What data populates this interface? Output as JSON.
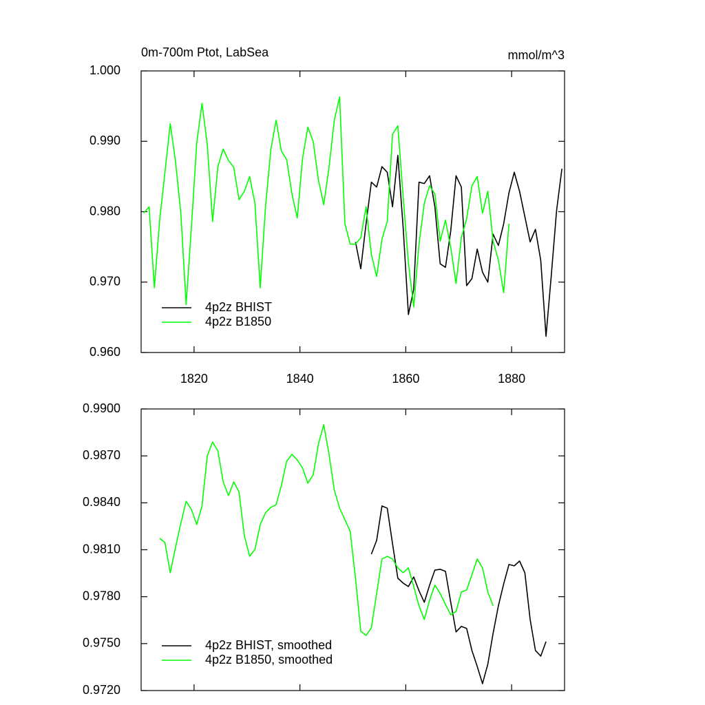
{
  "chart_data": [
    {
      "type": "line",
      "title": "0m-700m Ptot, LabSea",
      "units": "mmol/m^3",
      "xlim": [
        1810,
        1890
      ],
      "xticks": [
        1820,
        1840,
        1860,
        1880
      ],
      "ylim": [
        0.96,
        1.0
      ],
      "yticks": [
        {
          "value": 0.96,
          "label": "0.960"
        },
        {
          "value": 0.97,
          "label": "0.970"
        },
        {
          "value": 0.98,
          "label": "0.980"
        },
        {
          "value": 0.99,
          "label": "0.990"
        },
        {
          "value": 1.0,
          "label": "1.000"
        }
      ],
      "legend": "lower left",
      "series": [
        {
          "name": "4p2z BHIST",
          "color": "#000000",
          "x": [
            1850.5,
            1851.5,
            1852.5,
            1853.5,
            1854.5,
            1855.5,
            1856.5,
            1857.5,
            1858.5,
            1859.5,
            1860.5,
            1861.5,
            1862.5,
            1863.5,
            1864.5,
            1865.5,
            1866.5,
            1867.5,
            1868.5,
            1869.5,
            1870.5,
            1871.5,
            1872.5,
            1873.5,
            1874.5,
            1875.5,
            1876.5,
            1877.5,
            1878.5,
            1879.5,
            1880.5,
            1881.5,
            1882.5,
            1883.5,
            1884.5,
            1885.5,
            1886.5,
            1887.5,
            1888.5,
            1889.5
          ],
          "values": [
            0.9757,
            0.9719,
            0.9783,
            0.9842,
            0.9835,
            0.9864,
            0.9856,
            0.9807,
            0.988,
            0.9778,
            0.9654,
            0.969,
            0.9842,
            0.984,
            0.9851,
            0.9807,
            0.9726,
            0.9721,
            0.9773,
            0.9851,
            0.9835,
            0.9695,
            0.9705,
            0.9747,
            0.9714,
            0.97,
            0.9768,
            0.9752,
            0.9783,
            0.9827,
            0.9856,
            0.9829,
            0.9793,
            0.9757,
            0.9775,
            0.9731,
            0.9623,
            0.971,
            0.9802,
            0.9861
          ]
        },
        {
          "name": "4p2z B1850",
          "color": "#00ff00",
          "x": [
            1810.5,
            1811.5,
            1812.5,
            1813.5,
            1814.5,
            1815.5,
            1816.5,
            1817.5,
            1818.5,
            1819.5,
            1820.5,
            1821.5,
            1822.5,
            1823.5,
            1824.5,
            1825.5,
            1826.5,
            1827.5,
            1828.5,
            1829.5,
            1830.5,
            1831.5,
            1832.5,
            1833.5,
            1834.5,
            1835.5,
            1836.5,
            1837.5,
            1838.5,
            1839.5,
            1840.5,
            1841.5,
            1842.5,
            1843.5,
            1844.5,
            1845.5,
            1846.5,
            1847.5,
            1848.5,
            1849.5,
            1850.5,
            1851.5,
            1852.5,
            1853.5,
            1854.5,
            1855.5,
            1856.5,
            1857.5,
            1858.5,
            1859.5,
            1860.5,
            1861.5,
            1862.5,
            1863.5,
            1864.5,
            1865.5,
            1866.5,
            1867.5,
            1868.5,
            1869.5,
            1870.5,
            1871.5,
            1872.5,
            1873.5,
            1874.5,
            1875.5,
            1876.5,
            1877.5,
            1878.5,
            1879.5
          ],
          "values": [
            0.9798,
            0.9807,
            0.9692,
            0.9788,
            0.9856,
            0.9925,
            0.9871,
            0.9798,
            0.9668,
            0.9778,
            0.9897,
            0.9954,
            0.9895,
            0.9786,
            0.9864,
            0.9889,
            0.9873,
            0.9863,
            0.9817,
            0.9829,
            0.985,
            0.9812,
            0.9692,
            0.9807,
            0.9888,
            0.993,
            0.9886,
            0.9874,
            0.9825,
            0.9791,
            0.9876,
            0.992,
            0.99,
            0.9845,
            0.981,
            0.9863,
            0.993,
            0.9963,
            0.9783,
            0.9754,
            0.9754,
            0.9763,
            0.9807,
            0.9739,
            0.9708,
            0.9761,
            0.9786,
            0.991,
            0.9922,
            0.9822,
            0.9727,
            0.9665,
            0.9754,
            0.9812,
            0.9837,
            0.9825,
            0.9758,
            0.9788,
            0.9749,
            0.9698,
            0.9763,
            0.979,
            0.9837,
            0.985,
            0.9798,
            0.9829,
            0.9758,
            0.9731,
            0.9685,
            0.9783
          ]
        }
      ]
    },
    {
      "type": "line",
      "xlim": [
        1810,
        1890
      ],
      "xticks": [
        1820,
        1840,
        1860,
        1880
      ],
      "ylim": [
        0.972,
        0.99
      ],
      "yticks": [
        {
          "value": 0.972,
          "label": "0.9720"
        },
        {
          "value": 0.975,
          "label": "0.9750"
        },
        {
          "value": 0.978,
          "label": "0.9780"
        },
        {
          "value": 0.981,
          "label": "0.9810"
        },
        {
          "value": 0.984,
          "label": "0.9840"
        },
        {
          "value": 0.987,
          "label": "0.9870"
        },
        {
          "value": 0.99,
          "label": "0.9900"
        }
      ],
      "legend": "lower left",
      "series": [
        {
          "name": "4p2z BHIST, smoothed",
          "color": "#000000",
          "x": [
            1853.5,
            1854.5,
            1855.5,
            1856.5,
            1857.5,
            1858.5,
            1859.5,
            1860.5,
            1861.5,
            1862.5,
            1863.5,
            1864.5,
            1865.5,
            1866.5,
            1867.5,
            1868.5,
            1869.5,
            1870.5,
            1871.5,
            1872.5,
            1873.5,
            1874.5,
            1875.5,
            1876.5,
            1877.5,
            1878.5,
            1879.5,
            1880.5,
            1881.5,
            1882.5,
            1883.5,
            1884.5,
            1885.5,
            1886.5
          ],
          "values": [
            0.98072,
            0.9816,
            0.9838,
            0.98366,
            0.98138,
            0.97918,
            0.97887,
            0.97865,
            0.97926,
            0.97838,
            0.97764,
            0.97874,
            0.9797,
            0.97975,
            0.97962,
            0.97764,
            0.97575,
            0.9761,
            0.97597,
            0.97456,
            0.97354,
            0.97244,
            0.97368,
            0.97566,
            0.97742,
            0.97882,
            0.98006,
            0.97997,
            0.98028,
            0.97953,
            0.97654,
            0.97456,
            0.9742,
            0.97513
          ]
        },
        {
          "name": "4p2z B1850, smoothed",
          "color": "#00ff00",
          "x": [
            1813.5,
            1814.5,
            1815.5,
            1816.5,
            1817.5,
            1818.5,
            1819.5,
            1820.5,
            1821.5,
            1822.5,
            1823.5,
            1824.5,
            1825.5,
            1826.5,
            1827.5,
            1828.5,
            1829.5,
            1830.5,
            1831.5,
            1832.5,
            1833.5,
            1834.5,
            1835.5,
            1836.5,
            1837.5,
            1838.5,
            1839.5,
            1840.5,
            1841.5,
            1842.5,
            1843.5,
            1844.5,
            1845.5,
            1846.5,
            1847.5,
            1848.5,
            1849.5,
            1850.5,
            1851.5,
            1852.5,
            1853.5,
            1854.5,
            1855.5,
            1856.5,
            1857.5,
            1858.5,
            1859.5,
            1860.5,
            1861.5,
            1862.5,
            1863.5,
            1864.5,
            1865.5,
            1866.5,
            1867.5,
            1868.5,
            1869.5,
            1870.5,
            1871.5,
            1872.5,
            1873.5,
            1874.5,
            1875.5,
            1876.5
          ],
          "values": [
            0.98173,
            0.98146,
            0.97953,
            0.98116,
            0.9827,
            0.9841,
            0.98358,
            0.98261,
            0.9838,
            0.98701,
            0.98789,
            0.98732,
            0.98534,
            0.98446,
            0.98534,
            0.98468,
            0.9819,
            0.98058,
            0.98102,
            0.98261,
            0.98336,
            0.98371,
            0.98388,
            0.98512,
            0.98666,
            0.9871,
            0.98674,
            0.98622,
            0.98525,
            0.98578,
            0.98776,
            0.98899,
            0.9871,
            0.98481,
            0.98366,
            0.98292,
            0.98217,
            0.97918,
            0.97579,
            0.97552,
            0.97601,
            0.97821,
            0.98041,
            0.98058,
            0.98041,
            0.97984,
            0.97953,
            0.97984,
            0.97865,
            0.97742,
            0.97654,
            0.97777,
            0.97874,
            0.97821,
            0.9775,
            0.97684,
            0.97706,
            0.9783,
            0.97843,
            0.9794,
            0.98041,
            0.97984,
            0.9783,
            0.97742
          ]
        }
      ]
    }
  ]
}
